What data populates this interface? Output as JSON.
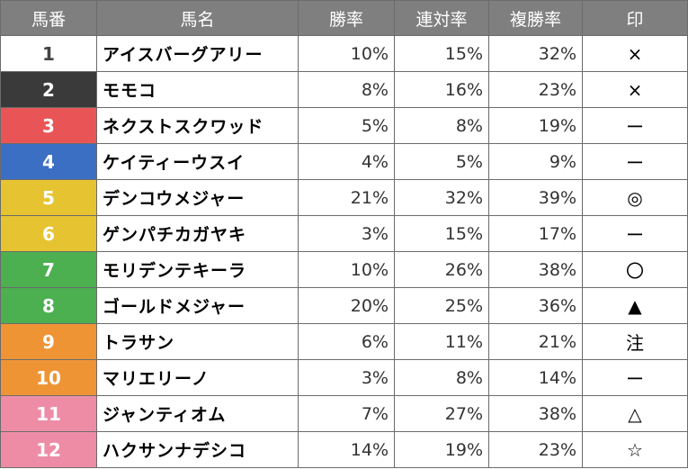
{
  "headers": [
    "馬番",
    "馬名",
    "勝率",
    "連対率",
    "複勝率",
    "印"
  ],
  "rows": [
    {
      "num": "1",
      "name": "アイスバーグアリー",
      "win": "10%",
      "place": "15%",
      "show": "32%",
      "mark": "×",
      "bg": "#ffffff",
      "fg": "#444444"
    },
    {
      "num": "2",
      "name": "モモコ",
      "win": "8%",
      "place": "16%",
      "show": "23%",
      "mark": "×",
      "bg": "#3a3a3a",
      "fg": "#ffffff"
    },
    {
      "num": "3",
      "name": "ネクストスクワッド",
      "win": "5%",
      "place": "8%",
      "show": "19%",
      "mark": "ー",
      "bg": "#e95557",
      "fg": "#ffffff"
    },
    {
      "num": "4",
      "name": "ケイティーウスイ",
      "win": "4%",
      "place": "5%",
      "show": "9%",
      "mark": "ー",
      "bg": "#3b6fc4",
      "fg": "#ffffff"
    },
    {
      "num": "5",
      "name": "デンコウメジャー",
      "win": "21%",
      "place": "32%",
      "show": "39%",
      "mark": "◎",
      "bg": "#e6c431",
      "fg": "#ffffff"
    },
    {
      "num": "6",
      "name": "ゲンパチカガヤキ",
      "win": "3%",
      "place": "15%",
      "show": "17%",
      "mark": "ー",
      "bg": "#e6c431",
      "fg": "#ffffff"
    },
    {
      "num": "7",
      "name": "モリデンテキーラ",
      "win": "10%",
      "place": "26%",
      "show": "38%",
      "mark": "〇",
      "bg": "#4caf50",
      "fg": "#ffffff"
    },
    {
      "num": "8",
      "name": "ゴールドメジャー",
      "win": "20%",
      "place": "25%",
      "show": "36%",
      "mark": "▲",
      "bg": "#4caf50",
      "fg": "#ffffff"
    },
    {
      "num": "9",
      "name": "トラサン",
      "win": "6%",
      "place": "11%",
      "show": "21%",
      "mark": "注",
      "bg": "#ef9434",
      "fg": "#ffffff"
    },
    {
      "num": "10",
      "name": "マリエリーノ",
      "win": "3%",
      "place": "8%",
      "show": "14%",
      "mark": "ー",
      "bg": "#ef9434",
      "fg": "#ffffff"
    },
    {
      "num": "11",
      "name": "ジャンティオム",
      "win": "7%",
      "place": "27%",
      "show": "38%",
      "mark": "△",
      "bg": "#ee8ca6",
      "fg": "#ffffff"
    },
    {
      "num": "12",
      "name": "ハクサンナデシコ",
      "win": "14%",
      "place": "19%",
      "show": "23%",
      "mark": "☆",
      "bg": "#ee8ca6",
      "fg": "#ffffff"
    }
  ]
}
